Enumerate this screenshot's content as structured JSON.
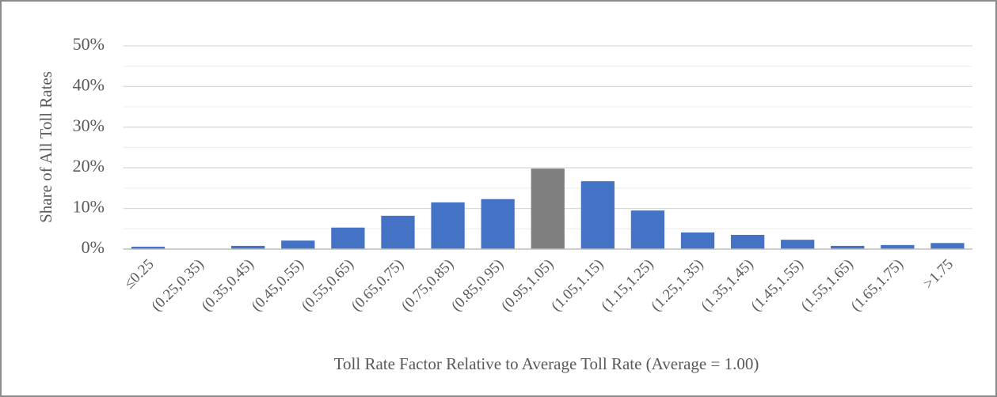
{
  "chart_data": {
    "type": "bar",
    "x_label": "Toll Rate Factor Relative to Average Toll Rate (Average = 1.00)",
    "y_label": "Share of All Toll Rates",
    "categories": [
      "≤0.25",
      "(0.25,0.35)",
      "(0.35,0.45)",
      "(0.45,0.55)",
      "(0.55,0.65)",
      "(0.65,0.75)",
      "(0.75,0.85)",
      "(0.85,0.95)",
      "(0.95,1.05)",
      "(1.05,1.15)",
      "(1.15,1.25)",
      "(1.25,1.35)",
      "(1.35,1.45)",
      "(1.45,1.55)",
      "(1.55,1.65)",
      "(1.65,1.75)",
      ">1.75"
    ],
    "values": [
      0.6,
      0.1,
      0.8,
      2.1,
      5.3,
      8.2,
      11.5,
      12.3,
      19.8,
      16.7,
      9.5,
      4.1,
      3.5,
      2.3,
      0.8,
      1.0,
      1.5
    ],
    "colors": [
      "#4472c4",
      "#4472c4",
      "#4472c4",
      "#4472c4",
      "#4472c4",
      "#4472c4",
      "#4472c4",
      "#4472c4",
      "#7f7f7f",
      "#4472c4",
      "#4472c4",
      "#4472c4",
      "#4472c4",
      "#4472c4",
      "#4472c4",
      "#4472c4",
      "#4472c4"
    ],
    "ylim": [
      0,
      50
    ],
    "yticks": [
      {
        "value": 0,
        "label": "0%"
      },
      {
        "value": 10,
        "label": "10%"
      },
      {
        "value": 20,
        "label": "20%"
      },
      {
        "value": 30,
        "label": "30%"
      },
      {
        "value": 40,
        "label": "40%"
      },
      {
        "value": 50,
        "label": "50%"
      }
    ],
    "minor_yticks": [
      5,
      15,
      25,
      35,
      45
    ],
    "grid": true
  }
}
